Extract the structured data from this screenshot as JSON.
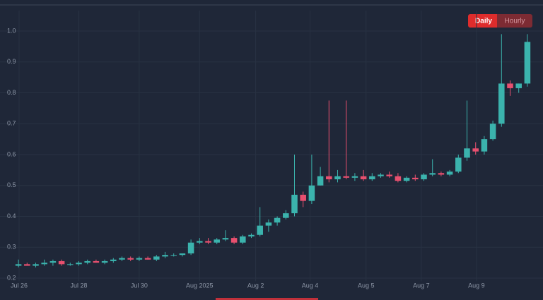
{
  "toggle": {
    "options": [
      "Daily",
      "Hourly"
    ],
    "active": 0
  },
  "chart_data": {
    "type": "candlestick",
    "up_color": "#3bb3ad",
    "down_color": "#e8506f",
    "grid": true,
    "xlim": [
      0,
      60
    ],
    "xticks": [
      {
        "value": 0.57,
        "label": "Jul 26"
      },
      {
        "value": 7.5,
        "label": "Jul 28"
      },
      {
        "value": 14.5,
        "label": "Jul 30"
      },
      {
        "value": 21.5,
        "label": "Aug 2025"
      },
      {
        "value": 28.0,
        "label": "Aug 2"
      },
      {
        "value": 34.3,
        "label": "Aug 4"
      },
      {
        "value": 40.8,
        "label": "Aug 5"
      },
      {
        "value": 47.2,
        "label": "Aug 7"
      },
      {
        "value": 53.6,
        "label": "Aug 9"
      }
    ],
    "ylim": [
      0.19,
      1.02
    ],
    "yticks": [
      0.2,
      0.3,
      0.4,
      0.5,
      0.6,
      0.7,
      0.8,
      0.9,
      {
        "value": 1,
        "label": "1.0"
      }
    ],
    "open": [
      0.24,
      0.245,
      0.24,
      0.245,
      0.25,
      0.255,
      0.245,
      0.245,
      0.25,
      0.255,
      0.25,
      0.255,
      0.26,
      0.265,
      0.26,
      0.265,
      0.26,
      0.27,
      0.275,
      0.275,
      0.28,
      0.315,
      0.32,
      0.315,
      0.325,
      0.33,
      0.315,
      0.335,
      0.34,
      0.37,
      0.38,
      0.395,
      0.41,
      0.47,
      0.45,
      0.5,
      0.53,
      0.52,
      0.53,
      0.525,
      0.53,
      0.52,
      0.53,
      0.535,
      0.53,
      0.515,
      0.525,
      0.52,
      0.535,
      0.54,
      0.535,
      0.545,
      0.59,
      0.62,
      0.61,
      0.65,
      0.7,
      0.83,
      0.815,
      0.83
    ],
    "high": [
      0.26,
      0.25,
      0.25,
      0.26,
      0.26,
      0.26,
      0.25,
      0.255,
      0.26,
      0.26,
      0.26,
      0.265,
      0.27,
      0.27,
      0.27,
      0.27,
      0.275,
      0.285,
      0.28,
      0.28,
      0.325,
      0.33,
      0.33,
      0.33,
      0.355,
      0.335,
      0.34,
      0.345,
      0.43,
      0.39,
      0.4,
      0.42,
      0.6,
      0.48,
      0.6,
      0.56,
      0.775,
      0.55,
      0.775,
      0.54,
      0.55,
      0.54,
      0.54,
      0.545,
      0.54,
      0.53,
      0.535,
      0.54,
      0.585,
      0.545,
      0.55,
      0.6,
      0.775,
      0.64,
      0.66,
      0.71,
      0.99,
      0.84,
      0.83,
      0.99
    ],
    "low": [
      0.235,
      0.24,
      0.235,
      0.24,
      0.24,
      0.24,
      0.24,
      0.24,
      0.245,
      0.25,
      0.245,
      0.25,
      0.255,
      0.255,
      0.255,
      0.26,
      0.255,
      0.265,
      0.27,
      0.27,
      0.275,
      0.31,
      0.31,
      0.31,
      0.32,
      0.31,
      0.31,
      0.33,
      0.335,
      0.35,
      0.37,
      0.39,
      0.4,
      0.43,
      0.44,
      0.5,
      0.51,
      0.51,
      0.52,
      0.515,
      0.515,
      0.515,
      0.525,
      0.525,
      0.51,
      0.51,
      0.515,
      0.515,
      0.53,
      0.53,
      0.53,
      0.54,
      0.58,
      0.6,
      0.6,
      0.645,
      0.69,
      0.79,
      0.8,
      0.82
    ],
    "close": [
      0.245,
      0.24,
      0.245,
      0.25,
      0.255,
      0.245,
      0.245,
      0.25,
      0.255,
      0.25,
      0.255,
      0.26,
      0.265,
      0.26,
      0.265,
      0.26,
      0.27,
      0.275,
      0.275,
      0.28,
      0.315,
      0.32,
      0.315,
      0.325,
      0.33,
      0.315,
      0.335,
      0.34,
      0.37,
      0.38,
      0.395,
      0.41,
      0.47,
      0.45,
      0.5,
      0.53,
      0.52,
      0.53,
      0.525,
      0.53,
      0.52,
      0.53,
      0.535,
      0.53,
      0.515,
      0.525,
      0.52,
      0.535,
      0.54,
      0.535,
      0.545,
      0.59,
      0.62,
      0.61,
      0.65,
      0.7,
      0.83,
      0.815,
      0.83,
      0.965
    ]
  }
}
